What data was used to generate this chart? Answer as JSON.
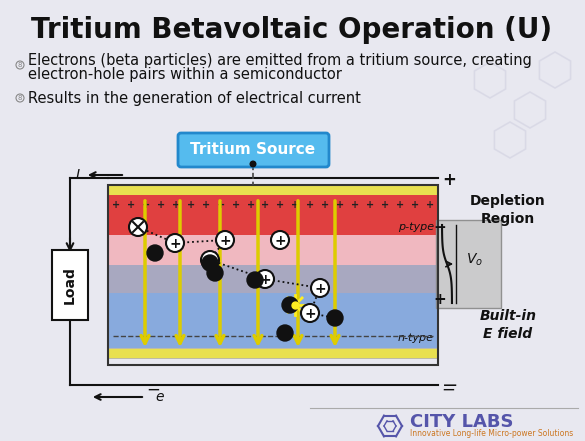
{
  "title": "Tritium Betavoltaic Operation (U)",
  "title_fontsize": 20,
  "bullet1_line1": "Electrons (beta particles) are emitted from a tritium source, creating",
  "bullet1_line2": "electron-hole pairs within a semiconductor",
  "bullet2": "Results in the generation of electrical current",
  "bullet_fontsize": 10.5,
  "bg_color": "#e8e8f0",
  "tritium_box_color": "#55bbee",
  "tritium_box_text": "Tritium Source",
  "yellow_color": "#e8e050",
  "p_type_red": "#e04040",
  "p_type_pink": "#f0b0b0",
  "depletion_grey": "#9898b8",
  "n_type_blue": "#88aadd",
  "n_type_light": "#aaccee",
  "load_color": "#ffffff",
  "grey_block_color": "#cccccc",
  "city_labs_purple": "#5555aa",
  "city_labs_orange": "#cc7722"
}
